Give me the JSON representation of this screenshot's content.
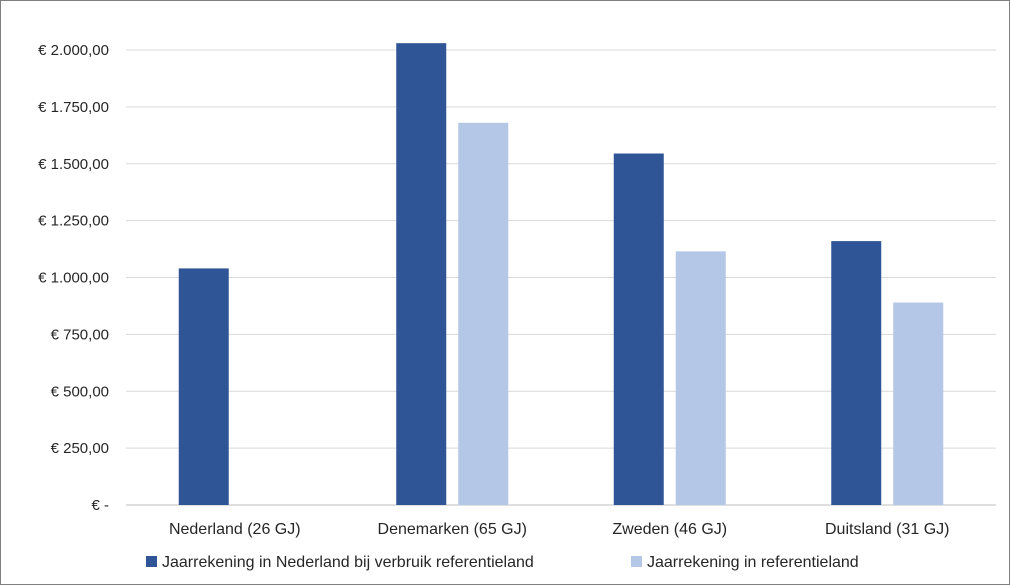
{
  "chart_data": {
    "type": "bar",
    "title": "",
    "xlabel": "",
    "ylabel": "",
    "categories": [
      "Nederland (26 GJ)",
      "Denemarken (65 GJ)",
      "Zweden (46 GJ)",
      "Duitsland (31 GJ)"
    ],
    "series": [
      {
        "name": "Jaarrekening in Nederland bij verbruik referentieland",
        "color": "#2f5597",
        "values": [
          1040,
          2030,
          1545,
          1160
        ]
      },
      {
        "name": "Jaarrekening in referentieland",
        "color": "#b4c7e7",
        "values": [
          null,
          1680,
          1115,
          890
        ]
      }
    ],
    "ylim": [
      0,
      2000
    ],
    "yticks": [
      0,
      250,
      500,
      750,
      1000,
      1250,
      1500,
      1750,
      2000
    ],
    "ytick_labels": [
      "€ -",
      "€ 250,00",
      "€ 500,00",
      "€ 750,00",
      "€ 1.000,00",
      "€ 1.250,00",
      "€ 1.500,00",
      "€ 1.750,00",
      "€ 2.000,00"
    ],
    "grid": true,
    "gridline_color": "#d9d9d9",
    "legend_position": "bottom"
  }
}
